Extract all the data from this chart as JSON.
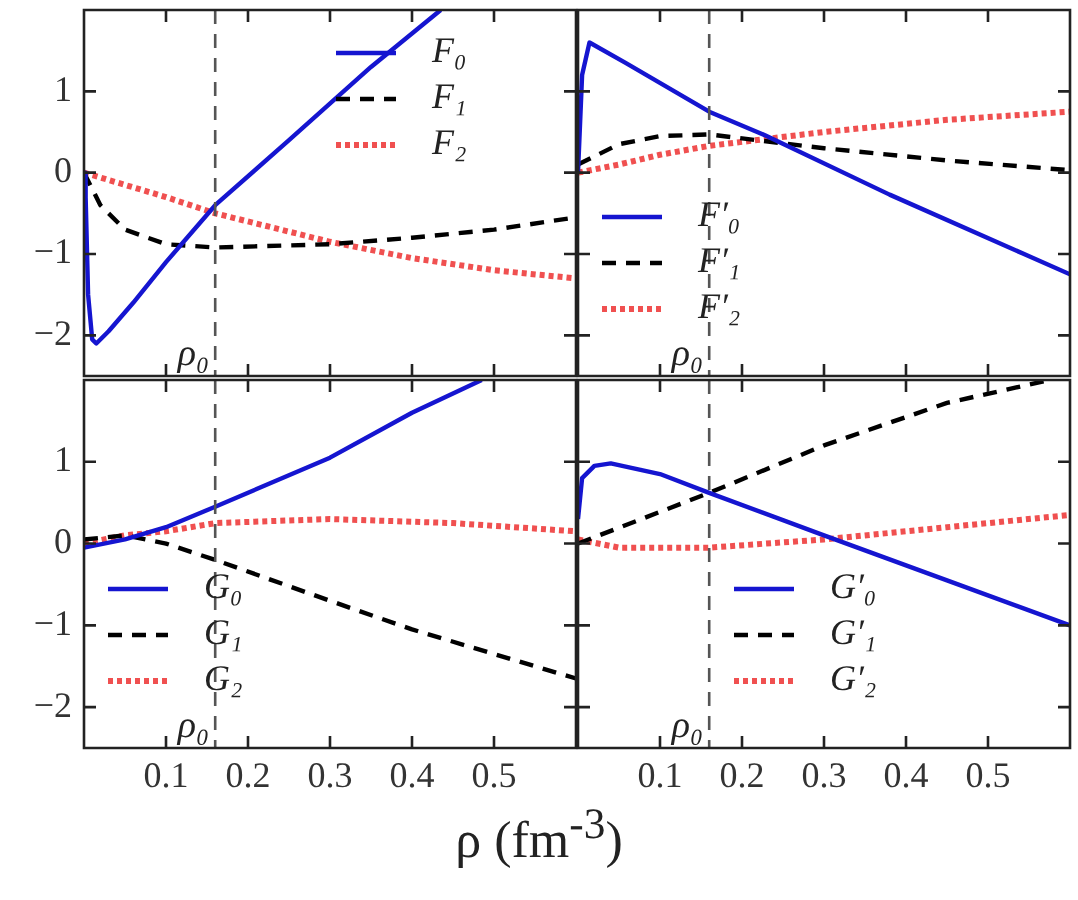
{
  "chart_data": [
    {
      "type": "line",
      "xlim": [
        0,
        0.6
      ],
      "ylim": [
        -2.5,
        2
      ],
      "xticks": [
        0.1,
        0.2,
        0.3,
        0.4,
        0.5
      ],
      "yticks": [
        -2,
        -1,
        0,
        1
      ],
      "tick_labels": "y",
      "legend": "top right",
      "ref_lines": [
        {
          "axis": "x",
          "value": 0.16,
          "label": "ρ₀",
          "color": "#555555",
          "line_style": "dashed"
        }
      ],
      "series": [
        {
          "name": "F₀",
          "color": "#1515d0",
          "line_style": "solid",
          "x": [
            0,
            0.002,
            0.005,
            0.01,
            0.015,
            0.03,
            0.06,
            0.1,
            0.16,
            0.25,
            0.35,
            0.435
          ],
          "values": [
            0,
            -0.3,
            -1.5,
            -2.05,
            -2.1,
            -1.95,
            -1.6,
            -1.1,
            -0.4,
            0.4,
            1.3,
            2.0
          ]
        },
        {
          "name": "F₁",
          "color": "#000000",
          "line_style": "dashed",
          "x": [
            0,
            0.02,
            0.05,
            0.1,
            0.16,
            0.3,
            0.4,
            0.5,
            0.6
          ],
          "values": [
            0,
            -0.4,
            -0.7,
            -0.88,
            -0.92,
            -0.88,
            -0.8,
            -0.7,
            -0.55
          ]
        },
        {
          "name": "F₂",
          "color": "#f05050",
          "line_style": "dotted",
          "x": [
            0,
            0.1,
            0.16,
            0.3,
            0.4,
            0.5,
            0.6
          ],
          "values": [
            0,
            -0.3,
            -0.5,
            -0.85,
            -1.05,
            -1.2,
            -1.3
          ]
        }
      ]
    },
    {
      "type": "line",
      "xlim": [
        0,
        0.6
      ],
      "ylim": [
        -2.5,
        2
      ],
      "xticks": [
        0.1,
        0.2,
        0.3,
        0.4,
        0.5
      ],
      "yticks": [
        -2,
        -1,
        0,
        1
      ],
      "tick_labels": false,
      "legend": "bottom left",
      "ref_lines": [
        {
          "axis": "x",
          "value": 0.16,
          "label": "ρ₀",
          "color": "#555555",
          "line_style": "dashed"
        }
      ],
      "series": [
        {
          "name": "F′₀",
          "color": "#1515d0",
          "line_style": "solid",
          "x": [
            0,
            0.005,
            0.014,
            0.058,
            0.16,
            0.228,
            0.38,
            0.6
          ],
          "values": [
            0,
            1.2,
            1.6,
            1.35,
            0.75,
            0.46,
            -0.27,
            -1.25
          ]
        },
        {
          "name": "F′₁",
          "color": "#000000",
          "line_style": "dashed",
          "x": [
            0,
            0.02,
            0.05,
            0.1,
            0.16,
            0.3,
            0.45,
            0.6
          ],
          "values": [
            0.1,
            0.2,
            0.35,
            0.45,
            0.47,
            0.3,
            0.15,
            0.03
          ]
        },
        {
          "name": "F′₂",
          "color": "#f05050",
          "line_style": "dotted",
          "x": [
            0,
            0.05,
            0.1,
            0.16,
            0.3,
            0.45,
            0.6
          ],
          "values": [
            0,
            0.1,
            0.22,
            0.33,
            0.5,
            0.65,
            0.75
          ]
        }
      ]
    },
    {
      "type": "line",
      "xlim": [
        0,
        0.6
      ],
      "ylim": [
        -2.5,
        2
      ],
      "xticks": [
        0.1,
        0.2,
        0.3,
        0.4,
        0.5
      ],
      "yticks": [
        -2,
        -1,
        0,
        1
      ],
      "xlabel": "ρ (fm$^{-3}$)",
      "legend": "bottom left",
      "ref_lines": [
        {
          "axis": "x",
          "value": 0.16,
          "label": "ρ₀",
          "color": "#555555",
          "line_style": "dashed"
        }
      ],
      "series": [
        {
          "name": "G₀",
          "color": "#1515d0",
          "line_style": "solid",
          "x": [
            0,
            0.05,
            0.1,
            0.16,
            0.3,
            0.4,
            0.485
          ],
          "values": [
            -0.05,
            0.05,
            0.2,
            0.45,
            1.05,
            1.6,
            2.0
          ]
        },
        {
          "name": "G₁",
          "color": "#000000",
          "line_style": "dashed",
          "x": [
            0,
            0.05,
            0.1,
            0.16,
            0.3,
            0.4,
            0.5,
            0.6
          ],
          "values": [
            0.05,
            0.1,
            0,
            -0.2,
            -0.7,
            -1.05,
            -1.35,
            -1.65
          ]
        },
        {
          "name": "G₂",
          "color": "#f05050",
          "line_style": "dotted",
          "x": [
            0,
            0.05,
            0.1,
            0.16,
            0.3,
            0.45,
            0.6
          ],
          "values": [
            0,
            0.1,
            0.15,
            0.25,
            0.3,
            0.25,
            0.15
          ]
        }
      ]
    },
    {
      "type": "line",
      "xlim": [
        0,
        0.6
      ],
      "ylim": [
        -2.5,
        2
      ],
      "xticks": [
        0.1,
        0.2,
        0.3,
        0.4,
        0.5
      ],
      "yticks": [
        -2,
        -1,
        0,
        1
      ],
      "tick_labels": "x",
      "legend": "bottom",
      "ref_lines": [
        {
          "axis": "x",
          "value": 0.16,
          "label": "ρ₀",
          "color": "#555555",
          "line_style": "dashed"
        }
      ],
      "series": [
        {
          "name": "G′₀",
          "color": "#1515d0",
          "line_style": "solid",
          "x": [
            0,
            0.005,
            0.02,
            0.04,
            0.1,
            0.16,
            0.3,
            0.45,
            0.6
          ],
          "values": [
            0.3,
            0.8,
            0.95,
            0.98,
            0.85,
            0.62,
            0.1,
            -0.45,
            -1.0
          ]
        },
        {
          "name": "G′₁",
          "color": "#000000",
          "line_style": "dashed",
          "x": [
            0,
            0.16,
            0.3,
            0.45,
            0.575
          ],
          "values": [
            0,
            0.62,
            1.2,
            1.72,
            2.0
          ]
        },
        {
          "name": "G′₂",
          "color": "#f05050",
          "line_style": "dotted",
          "x": [
            0,
            0.05,
            0.16,
            0.3,
            0.45,
            0.6
          ],
          "values": [
            0.05,
            -0.05,
            -0.05,
            0.05,
            0.2,
            0.35
          ]
        }
      ]
    }
  ]
}
